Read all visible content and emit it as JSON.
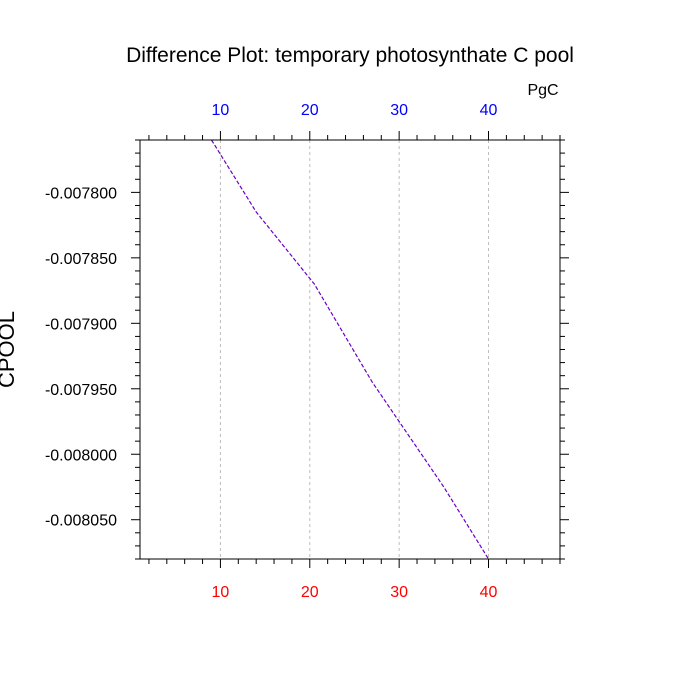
{
  "chart_data": {
    "type": "line",
    "title": "Difference Plot: temporary photosynthate C pool",
    "ylabel": "CPOOL",
    "top_axis_unit": "PgC",
    "xlim": [
      1,
      48
    ],
    "ylim": [
      -0.00808,
      -0.00776
    ],
    "x_ticks": [
      10,
      20,
      30,
      40
    ],
    "x_tick_labels": [
      "10",
      "20",
      "30",
      "40"
    ],
    "y_ticks": [
      -0.0078,
      -0.00785,
      -0.0079,
      -0.00795,
      -0.008,
      -0.00805
    ],
    "y_tick_labels": [
      "-0.007800",
      "-0.007850",
      "-0.007900",
      "-0.007950",
      "-0.008000",
      "-0.008050"
    ],
    "grid": "vertical-dashed",
    "colors": {
      "bottom_tick_labels": "#ff0000",
      "top_tick_labels": "#0000ff",
      "line": "#6a00c8",
      "grid": "#bdbdbd"
    },
    "series": [
      {
        "x": [
          9,
          14,
          20.5,
          27,
          30,
          35,
          40
        ],
        "y": [
          -0.00776,
          -0.007815,
          -0.00787,
          -0.007945,
          -0.007975,
          -0.008025,
          -0.00808
        ]
      }
    ]
  }
}
